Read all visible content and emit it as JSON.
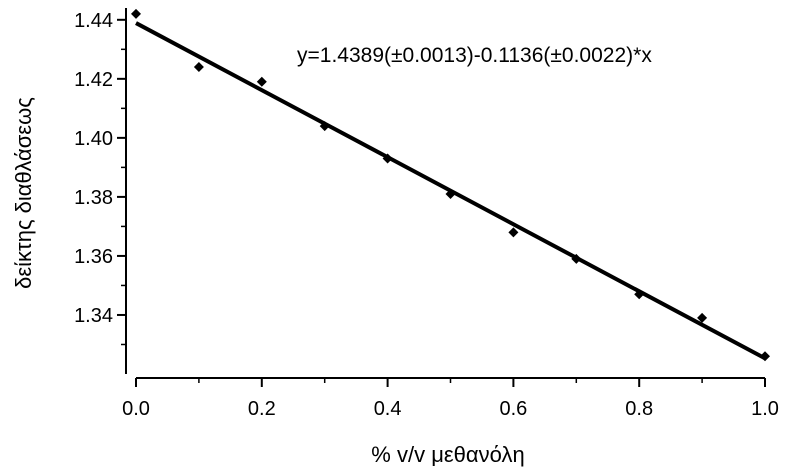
{
  "chart_data": {
    "type": "scatter",
    "xlabel": "% v/v μεθανόλη",
    "ylabel": "δείκτης διαθλάσεως",
    "annotation": "y=1.4389(±0.0013)-0.1136(±0.0022)*x",
    "xlim": [
      0.0,
      1.0
    ],
    "ylim": [
      1.32,
      1.444
    ],
    "x_ticks": [
      0.0,
      0.2,
      0.4,
      0.6,
      0.8,
      1.0
    ],
    "x_tick_labels": [
      "0.0",
      "0.2",
      "0.4",
      "0.6",
      "0.8",
      "1.0"
    ],
    "y_ticks": [
      1.34,
      1.36,
      1.38,
      1.4,
      1.42,
      1.44
    ],
    "y_tick_labels": [
      "1.34",
      "1.36",
      "1.38",
      "1.40",
      "1.42",
      "1.44"
    ],
    "grid": false,
    "series": [
      {
        "x": [
          0.0,
          0.1,
          0.2,
          0.3,
          0.4,
          0.5,
          0.6,
          0.7,
          0.8,
          0.9,
          1.0
        ],
        "y": [
          1.442,
          1.424,
          1.419,
          1.404,
          1.393,
          1.381,
          1.368,
          1.359,
          1.347,
          1.339,
          1.326
        ]
      }
    ],
    "fit": {
      "intercept": 1.4389,
      "slope": -0.1136,
      "x_range": [
        0.0,
        1.0
      ]
    }
  }
}
